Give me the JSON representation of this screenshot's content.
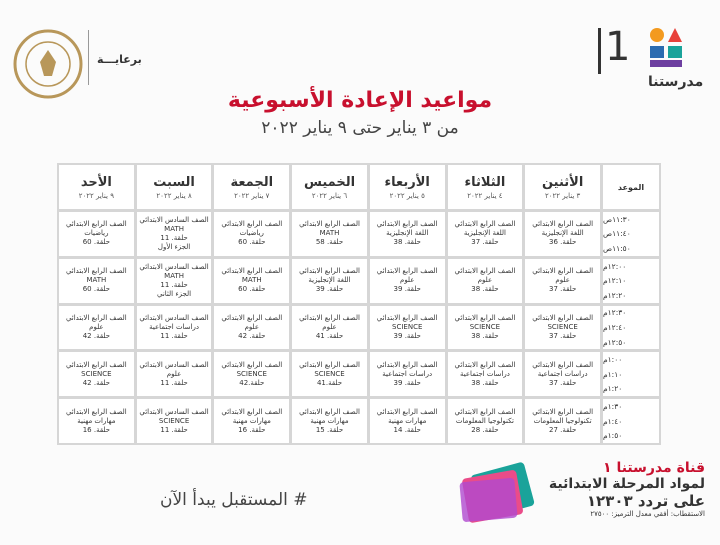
{
  "header": {
    "sponsor_label": "برعايـــة",
    "brand_name": "مدرستنا",
    "brand_number": "1",
    "title": "مواعيد الإعادة الأسبوعية",
    "subtitle": "من ٣ يناير حتى ٩ يناير ٢٠٢٢"
  },
  "table": {
    "time_header": "الموعد",
    "columns": [
      {
        "day": "الأثنين",
        "date": "٣ يناير ٢٠٢٢"
      },
      {
        "day": "الثلاثاء",
        "date": "٤ يناير ٢٠٢٢"
      },
      {
        "day": "الأربعاء",
        "date": "٥ يناير ٢٠٢٢"
      },
      {
        "day": "الخميس",
        "date": "٦ يناير ٢٠٢٢"
      },
      {
        "day": "الجمعة",
        "date": "٧ يناير ٢٠٢٢"
      },
      {
        "day": "السبت",
        "date": "٨ يناير ٢٠٢٢"
      },
      {
        "day": "الأحد",
        "date": "٩ يناير ٢٠٢٢"
      }
    ],
    "rows": [
      {
        "times": [
          "١١:٣٠ص",
          "١١:٤٠ص",
          "١١:٥٠ص"
        ],
        "cells": [
          [
            "الصف الرابع الابتدائي",
            "اللغة الإنجليزية",
            "حلقة. 36"
          ],
          [
            "الصف الرابع الابتدائي",
            "اللغة الإنجليزية",
            "حلقة. 37"
          ],
          [
            "الصف الرابع الابتدائي",
            "اللغة الإنجليزية",
            "حلقة. 38"
          ],
          [
            "الصف الرابع الابتدائي",
            "MATH",
            "حلقة. 58"
          ],
          [
            "الصف الرابع الابتدائي",
            "رياضيات",
            "حلقة. 60"
          ],
          [
            "الصف السادس الابتدائي",
            "MATH",
            "حلقة. 11",
            "الجزء الأول"
          ],
          [
            "الصف الرابع الابتدائي",
            "رياضيات",
            "حلقة. 60"
          ]
        ]
      },
      {
        "times": [
          "١٢:٠٠م",
          "١٢:١٠م",
          "١٢:٢٠م"
        ],
        "cells": [
          [
            "الصف الرابع الابتدائي",
            "علوم",
            "حلقة. 37"
          ],
          [
            "الصف الرابع الابتدائي",
            "علوم",
            "حلقة. 38"
          ],
          [
            "الصف الرابع الابتدائي",
            "علوم",
            "حلقة. 39"
          ],
          [
            "الصف الرابع الابتدائي",
            "اللغة الإنجليزية",
            "حلقة. 39"
          ],
          [
            "الصف الرابع الابتدائي",
            "MATH",
            "حلقة. 60"
          ],
          [
            "الصف السادس الابتدائي",
            "MATH",
            "حلقة. 11",
            "الجزء الثاني"
          ],
          [
            "الصف الرابع الابتدائي",
            "MATH",
            "حلقة. 60"
          ]
        ]
      },
      {
        "times": [
          "١٢:٣٠م",
          "١٢:٤٠م",
          "١٢:٥٠م"
        ],
        "cells": [
          [
            "الصف الرابع الابتدائي",
            "SCIENCE",
            "حلقة. 37"
          ],
          [
            "الصف الرابع الابتدائي",
            "SCIENCE",
            "حلقة. 38"
          ],
          [
            "الصف الرابع الابتدائي",
            "SCIENCE",
            "حلقة. 39"
          ],
          [
            "الصف الرابع الابتدائي",
            "علوم",
            "حلقة. 41"
          ],
          [
            "الصف الرابع الابتدائي",
            "علوم",
            "حلقة. 42"
          ],
          [
            "الصف السادس الابتدائي",
            "دراسات اجتماعية",
            "حلقة. 11"
          ],
          [
            "الصف الرابع الابتدائي",
            "علوم",
            "حلقة. 42"
          ]
        ]
      },
      {
        "times": [
          "١:٠٠م",
          "١:١٠م",
          "١:٢٠م"
        ],
        "cells": [
          [
            "الصف الرابع الابتدائي",
            "دراسات اجتماعية",
            "حلقة. 37"
          ],
          [
            "الصف الرابع الابتدائي",
            "دراسات اجتماعية",
            "حلقة. 38"
          ],
          [
            "الصف الرابع الابتدائي",
            "دراسات اجتماعية",
            "حلقة. 39"
          ],
          [
            "الصف الرابع الابتدائي",
            "SCIENCE",
            "حلقة.41"
          ],
          [
            "الصف الرابع الابتدائي",
            "SCIENCE",
            "حلقة.42"
          ],
          [
            "الصف السادس الابتدائي",
            "علوم",
            "حلقة. 11"
          ],
          [
            "الصف الرابع الابتدائي",
            "SCIENCE",
            "حلقة. 42"
          ]
        ]
      },
      {
        "times": [
          "١:٣٠م",
          "١:٤٠م",
          "١:٥٠م"
        ],
        "cells": [
          [
            "الصف الرابع الابتدائي",
            "تكنولوجيا المعلومات",
            "حلقة. 27"
          ],
          [
            "الصف الرابع الابتدائي",
            "تكنولوجيا المعلومات",
            "حلقة. 28"
          ],
          [
            "الصف الرابع الابتدائي",
            "مهارات مهنية",
            "حلقة. 14"
          ],
          [
            "الصف الرابع الابتدائي",
            "مهارات مهنية",
            "حلقة. 15"
          ],
          [
            "الصف الرابع الابتدائي",
            "مهارات مهنية",
            "حلقة. 16"
          ],
          [
            "الصف السادس الابتدائي",
            "SCIENCE",
            "حلقة. 11"
          ],
          [
            "الصف الرابع الابتدائي",
            "مهارات مهنية",
            "حلقة. 16"
          ]
        ]
      }
    ]
  },
  "footer": {
    "hashtag": "# المستقبل يبدأ الآن",
    "channel": "قناة مدرستنا ١",
    "stage": "لمواد المرحلة الابتدائية",
    "frequency": "على تردد ١٢٣٠٣",
    "specs": "الاستقطاب: أفقي معدل الترميز: ٢٧٥٠٠"
  }
}
